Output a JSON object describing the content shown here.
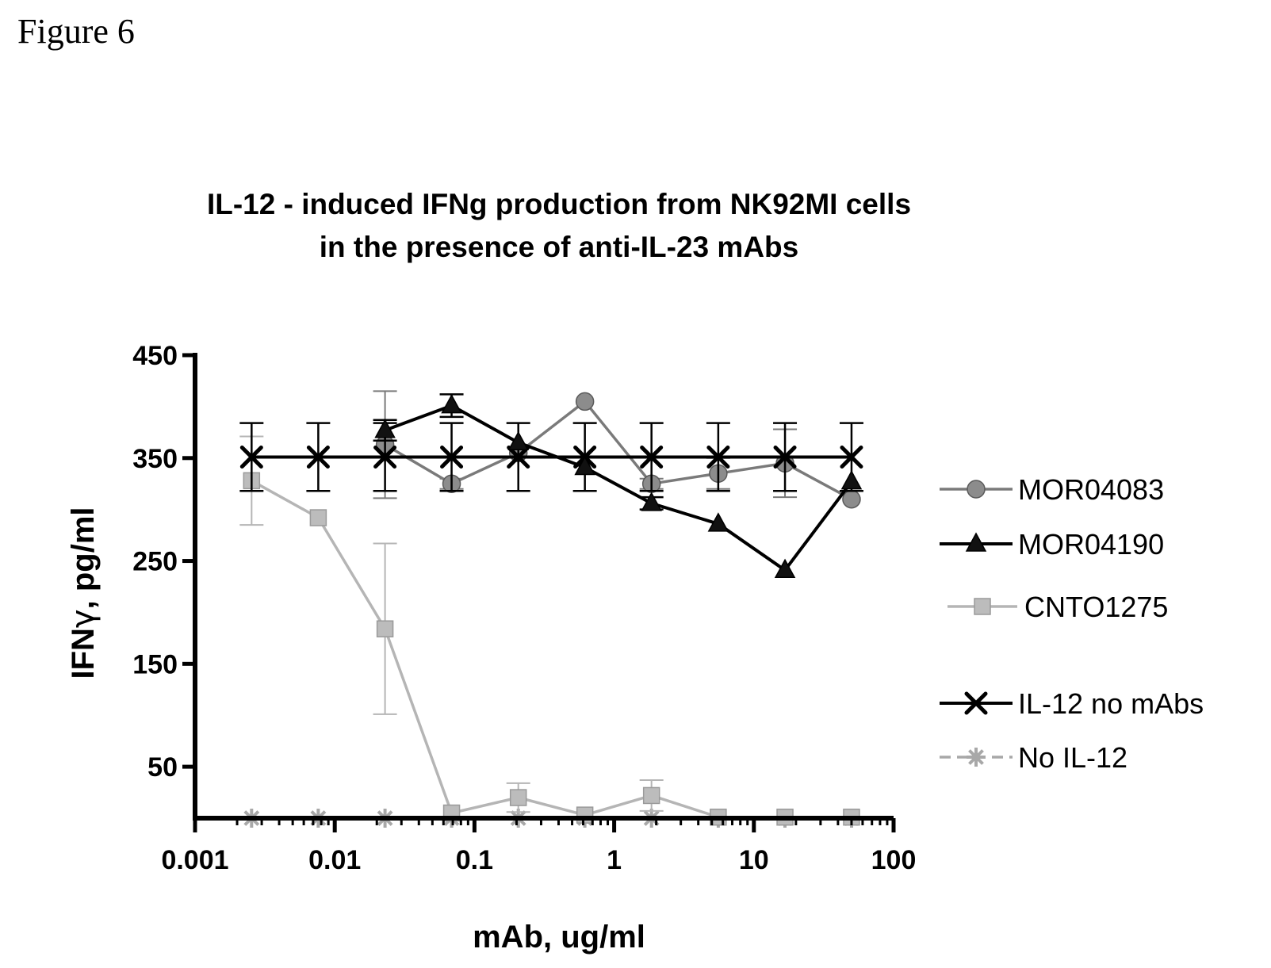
{
  "figure_label": "Figure 6",
  "chart_data": {
    "type": "line",
    "title_lines": [
      "IL-12 - induced IFNg production from NK92MI cells",
      "in the presence of anti-IL-23 mAbs"
    ],
    "xlabel": "mAb, ug/ml",
    "ylabel_main": "IFN",
    "ylabel_greek": "γ",
    "ylabel_rest": ", pg/ml",
    "x_scale": "log",
    "xlim": [
      0.001,
      100
    ],
    "ylim": [
      0,
      450
    ],
    "x_ticks": [
      0.001,
      0.01,
      0.1,
      1,
      10,
      100
    ],
    "x_tick_labels": [
      "0.001",
      "0.01",
      "0.1",
      "1",
      "10",
      "100"
    ],
    "y_ticks": [
      50,
      150,
      250,
      350,
      450
    ],
    "y_tick_labels": [
      "50",
      "150",
      "250",
      "350",
      "450"
    ],
    "grid": false,
    "legend_position": "right",
    "series": [
      {
        "name": "MOR04083",
        "marker": "circle",
        "color": "#8c8c8c",
        "line_color": "#7a7a7a",
        "x": [
          0.0229,
          0.0686,
          0.206,
          0.617,
          1.85,
          5.56,
          16.7,
          50
        ],
        "y": [
          363,
          325,
          355,
          405,
          325,
          335,
          345,
          310
        ],
        "err": [
          52,
          5,
          0,
          0,
          5,
          15,
          33,
          0
        ]
      },
      {
        "name": "MOR04190",
        "marker": "triangle",
        "color": "#111111",
        "line_color": "#000000",
        "x": [
          0.0229,
          0.0686,
          0.206,
          0.617,
          1.85,
          5.56,
          16.7,
          50
        ],
        "y": [
          377,
          401,
          365,
          341,
          306,
          286,
          241,
          327
        ],
        "err": [
          10,
          11,
          0,
          0,
          6,
          0,
          0,
          0
        ]
      },
      {
        "name": "CNTO1275",
        "marker": "square",
        "color": "#bcbcbc",
        "line_color": "#b5b5b5",
        "x": [
          0.00254,
          0.00762,
          0.0229,
          0.0686,
          0.206,
          0.617,
          1.85,
          5.56,
          16.7,
          50
        ],
        "y": [
          328,
          292,
          184,
          5,
          20,
          3,
          22,
          1,
          1,
          1
        ],
        "err": [
          43,
          0,
          83,
          0,
          14,
          0,
          15,
          0,
          0,
          0
        ]
      },
      {
        "name": "IL-12 no mAbs",
        "marker": "x",
        "color": "#000000",
        "line_color": "#000000",
        "x": [
          0.00254,
          0.00762,
          0.0229,
          0.0686,
          0.206,
          0.617,
          1.85,
          5.56,
          16.7,
          50
        ],
        "y": [
          351,
          351,
          351,
          351,
          351,
          351,
          351,
          351,
          351,
          351
        ],
        "err": [
          33,
          33,
          33,
          33,
          33,
          33,
          33,
          33,
          33,
          33
        ]
      },
      {
        "name": "No IL-12",
        "marker": "star",
        "color": "#a8a8a8",
        "line_color": "#a8a8a8",
        "x": [
          0.00254,
          0.00762,
          0.0229,
          0.0686,
          0.206,
          0.617,
          1.85,
          5.56,
          16.7,
          50
        ],
        "y": [
          0,
          0,
          0,
          0,
          0,
          0,
          0,
          0,
          0,
          0
        ],
        "err": [
          0,
          0,
          0,
          0,
          0,
          0,
          0,
          0,
          0,
          0
        ]
      }
    ]
  }
}
